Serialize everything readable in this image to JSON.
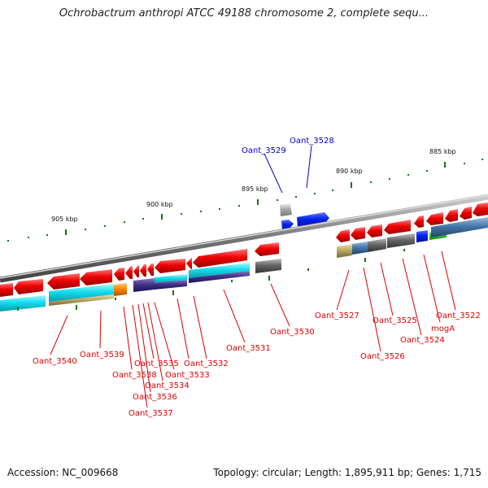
{
  "title": "Ochrobactrum anthropi ATCC 49188 chromosome 2, complete sequ...",
  "footer": {
    "accession": "Accession: NC_009668",
    "summary": "Topology: circular; Length: 1,895,911 bp; Genes: 1,715"
  },
  "scale_ticks": [
    "905 kbp",
    "900 kbp",
    "895 kbp",
    "890 kbp",
    "885 kbp"
  ],
  "upper_labels": [
    "Oant_3529",
    "Oant_3528"
  ],
  "lower_labels": [
    "Oant_3540",
    "Oant_3539",
    "Oant_3538",
    "Oant_3537",
    "Oant_3536",
    "Oant_3535",
    "Oant_3534",
    "Oant_3533",
    "Oant_3532",
    "Oant_3531",
    "Oant_3530",
    "Oant_3527",
    "Oant_3526",
    "Oant_3525",
    "Oant_3524",
    "mogA",
    "Oant_3522"
  ],
  "colors": {
    "gene_red": "#ee0000",
    "gene_blue": "#0022ee",
    "gene_cyan": "#11ddee",
    "gene_indigo": "#443388",
    "gene_gray": "#666666",
    "gene_steel": "#4477aa",
    "gene_khaki": "#bbaa66",
    "gene_orange": "#ff8800",
    "gene_green": "#33cc33",
    "label_red": "#dd0000",
    "label_blue": "#0000cc",
    "tick_green": "#117711"
  }
}
